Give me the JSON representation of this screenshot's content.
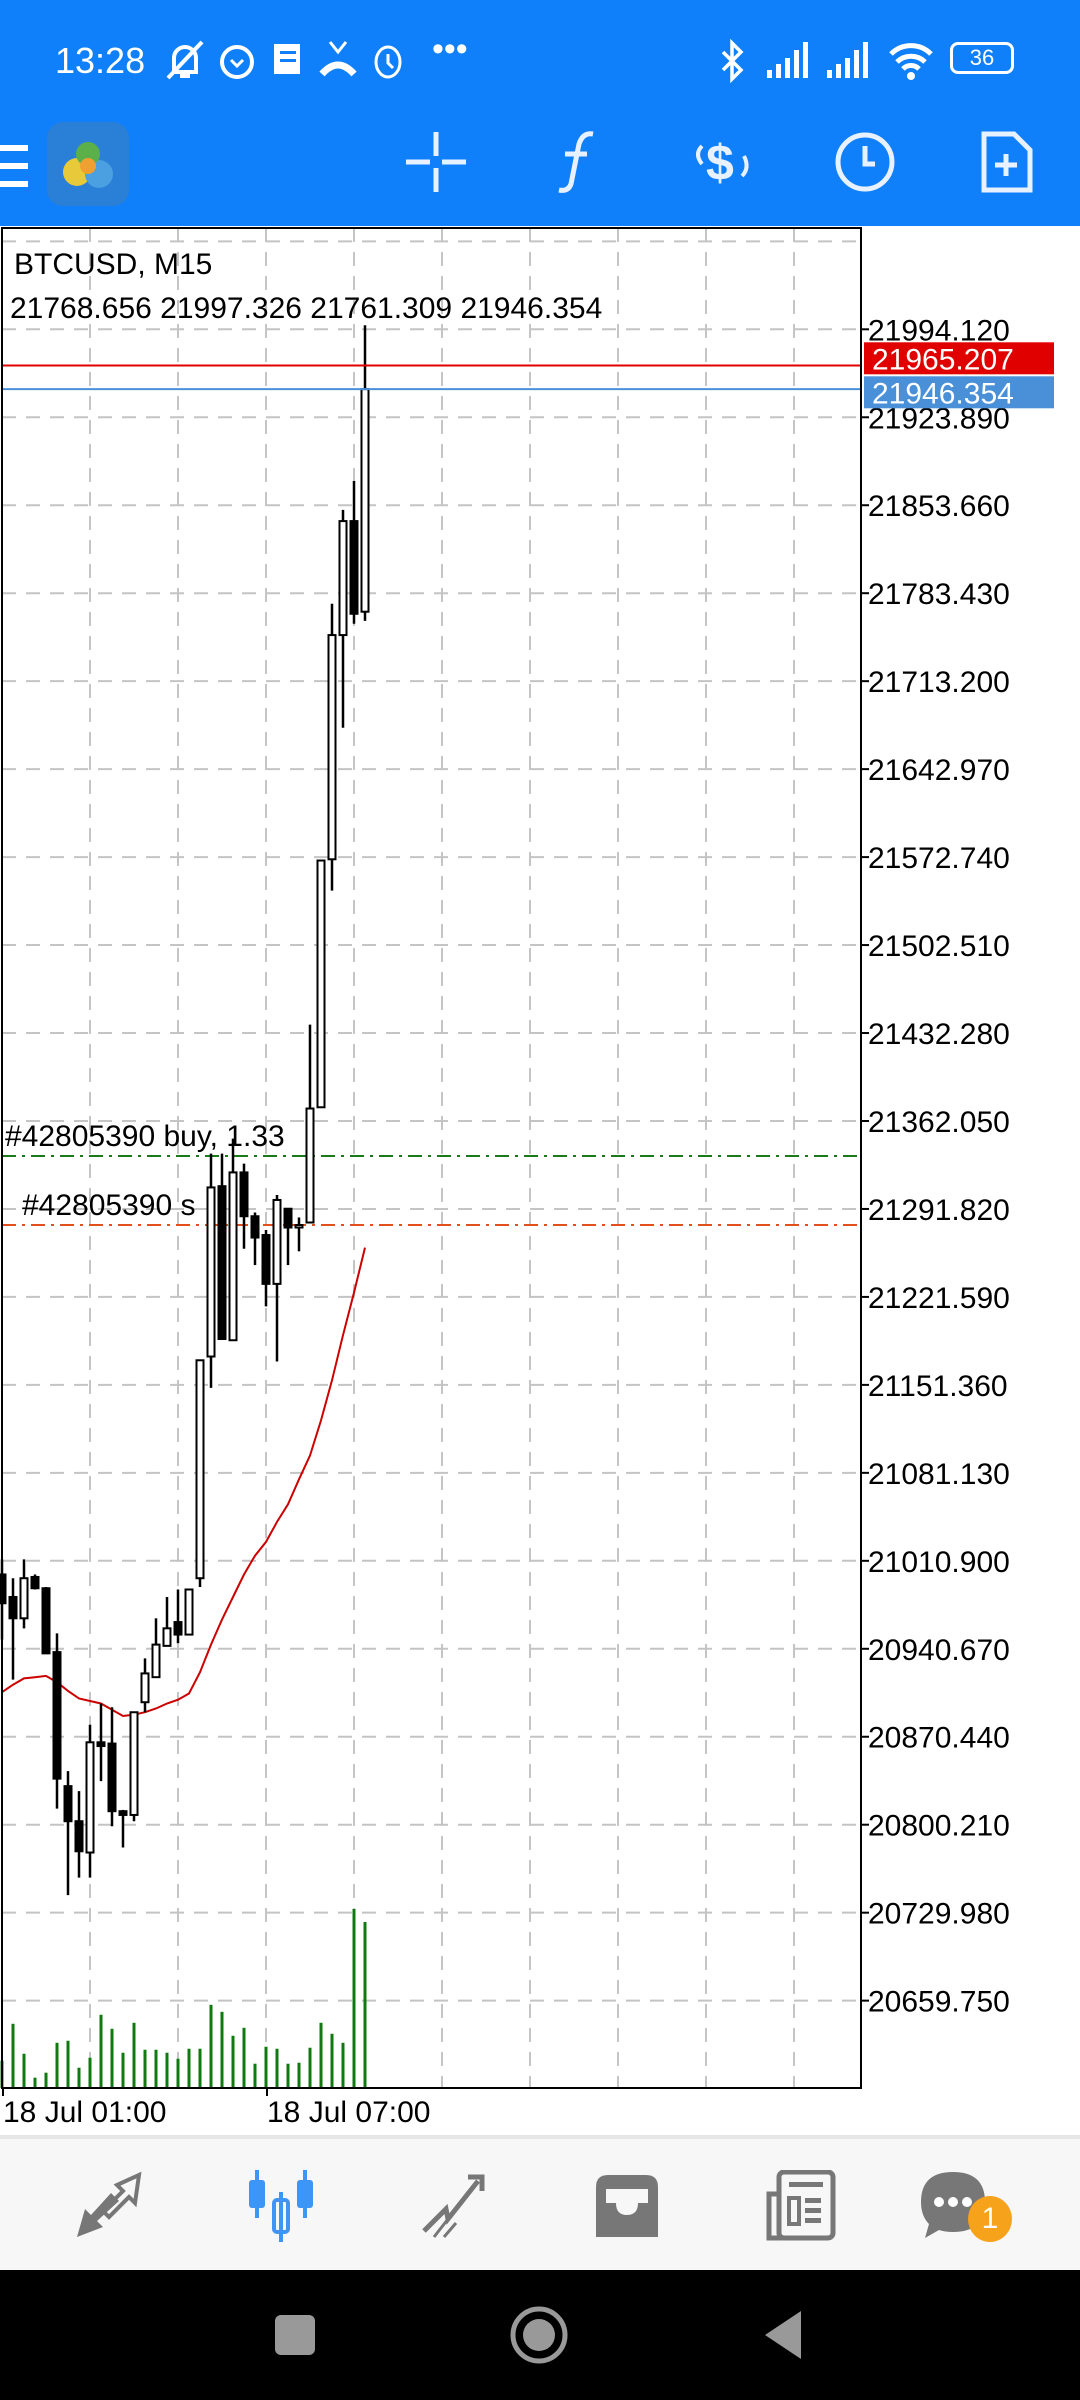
{
  "status_bar": {
    "time": "13:28",
    "battery": "36",
    "left_icons": [
      "muted-bell-icon",
      "alarm-icon",
      "message-icon",
      "missed-call-icon",
      "alarm-icon",
      "more-icon"
    ],
    "right_icons": [
      "bluetooth-icon",
      "signal-icon",
      "signal-icon",
      "wifi-icon",
      "battery-icon"
    ]
  },
  "app_bar": {
    "icons": [
      "menu-icon",
      "metatrader-logo",
      "crosshair-icon",
      "indicators-icon",
      "trade-icon",
      "timeframe-icon",
      "new-order-icon"
    ]
  },
  "colors": {
    "accent": "#0f80fa",
    "bid_line": "#e00000",
    "ask_line": "#4a90d9",
    "buy_line": "#1a7a1a",
    "sl_line": "#e2501e",
    "ma": "#cc0000",
    "volume": "#0f7a0f",
    "badge": "#f7a21b"
  },
  "chart_data": {
    "type": "candlestick",
    "title": "BTCUSD, M15",
    "ohlc_readout": "21768.656 21997.326 21761.309 21946.354",
    "ylim": [
      20590,
      22075
    ],
    "grid": true,
    "y_ticks": [
      "21994.120",
      "21923.890",
      "21853.660",
      "21783.430",
      "21713.200",
      "21642.970",
      "21572.740",
      "21502.510",
      "21432.280",
      "21362.050",
      "21291.820",
      "21221.590",
      "21151.360",
      "21081.130",
      "21010.900",
      "20940.670",
      "20870.440",
      "20800.210",
      "20729.980",
      "20659.750"
    ],
    "x_ticks": [
      {
        "label": "18 Jul 01:00",
        "index": 0
      },
      {
        "label": "18 Jul 07:00",
        "index": 24
      }
    ],
    "candles": [
      [
        21000,
        21012,
        20948,
        20977
      ],
      [
        20982,
        20997,
        20916,
        20965
      ],
      [
        20965,
        21012,
        20957,
        20997
      ],
      [
        20998,
        21000,
        20988,
        20989
      ],
      [
        20989,
        20990,
        20937,
        20937
      ],
      [
        20938,
        20953,
        20813,
        20837
      ],
      [
        20831,
        20843,
        20744,
        20803
      ],
      [
        20803,
        20827,
        20758,
        20779
      ],
      [
        20778,
        20880,
        20758,
        20866
      ],
      [
        20866,
        20897,
        20835,
        20863
      ],
      [
        20865,
        20894,
        20799,
        20811
      ],
      [
        20811,
        20812,
        20782,
        20808
      ],
      [
        20808,
        20890,
        20803,
        20890
      ],
      [
        20898,
        20933,
        20890,
        20921
      ],
      [
        20918,
        20965,
        20918,
        20944
      ],
      [
        20943,
        20982,
        20943,
        20957
      ],
      [
        20962,
        20988,
        20945,
        20952
      ],
      [
        20952,
        20988,
        20952,
        20988
      ],
      [
        20997,
        21171,
        20990,
        21171
      ],
      [
        21174,
        21336,
        21149,
        21309
      ],
      [
        21310,
        21336,
        21188,
        21188
      ],
      [
        21187,
        21348,
        21187,
        21321
      ],
      [
        21321,
        21328,
        21260,
        21286
      ],
      [
        21286,
        21289,
        21247,
        21269
      ],
      [
        21271,
        21275,
        21214,
        21232
      ],
      [
        21232,
        21303,
        21170,
        21299
      ],
      [
        21292,
        21292,
        21247,
        21277
      ],
      [
        21277,
        21285,
        21258,
        21279
      ],
      [
        21281,
        21439,
        21281,
        21372
      ],
      [
        21373,
        21570,
        21373,
        21570
      ],
      [
        21571,
        21775,
        21546,
        21750
      ],
      [
        21750,
        21850,
        21676,
        21841
      ],
      [
        21841,
        21873,
        21759,
        21767
      ],
      [
        21768.656,
        21997.326,
        21761.309,
        21946.354
      ]
    ],
    "moving_average": [
      20906,
      20912,
      20917,
      20918,
      20919,
      20914,
      20907,
      20901,
      20899,
      20897,
      20892,
      20887,
      20888,
      20890,
      20893,
      20897,
      20900,
      20905,
      20922,
      20944,
      20964,
      20982,
      21000,
      21015,
      21026,
      21042,
      21056,
      21076,
      21095,
      21123,
      21155,
      21191,
      21225,
      21261
    ],
    "volumes": [
      82,
      193,
      103,
      31,
      46,
      136,
      142,
      61,
      91,
      220,
      178,
      106,
      196,
      115,
      115,
      106,
      88,
      118,
      118,
      250,
      229,
      157,
      181,
      73,
      124,
      118,
      73,
      76,
      121,
      196,
      163,
      136,
      538,
      499
    ],
    "bid": {
      "price": 21965.207,
      "label": "21965.207"
    },
    "ask": {
      "price": 21946.354,
      "label": "21946.354"
    },
    "orders": [
      {
        "label": "#42805390 buy, 1.33",
        "price": 21334.1,
        "kind": "buy"
      },
      {
        "label": "#42805390 s",
        "price": 21279.0,
        "kind": "sl"
      }
    ]
  },
  "bottom_nav": {
    "items": [
      {
        "name": "quotes",
        "icon": "quotes-arrows-icon",
        "active": false
      },
      {
        "name": "chart",
        "icon": "candlestick-icon",
        "active": true
      },
      {
        "name": "trade",
        "icon": "trade-trend-icon",
        "active": false
      },
      {
        "name": "history",
        "icon": "inbox-icon",
        "active": false
      },
      {
        "name": "news",
        "icon": "news-icon",
        "active": false
      },
      {
        "name": "messages",
        "icon": "chat-icon",
        "active": false
      }
    ],
    "messages_badge": "1"
  }
}
